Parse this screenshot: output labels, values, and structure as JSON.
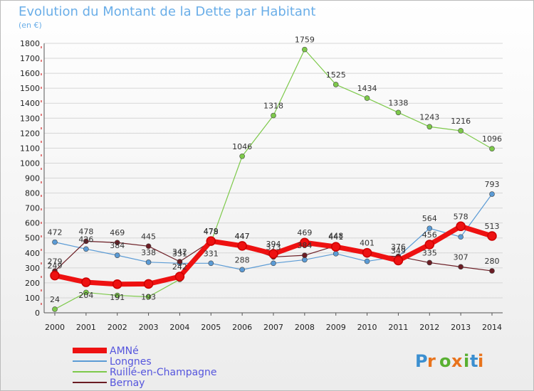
{
  "chart_data": {
    "type": "line",
    "title": "Evolution du Montant de la Dette par Habitant",
    "subtitle": "(en €)",
    "x": [
      "2000",
      "2001",
      "2002",
      "2003",
      "2004",
      "2005",
      "2006",
      "2007",
      "2008",
      "2009",
      "2010",
      "2011",
      "2012",
      "2013",
      "2014"
    ],
    "ylim": [
      0,
      1800
    ],
    "yticks": [
      0,
      100,
      200,
      300,
      400,
      500,
      600,
      700,
      800,
      900,
      1000,
      1100,
      1200,
      1300,
      1400,
      1500,
      1600,
      1700,
      1800
    ],
    "grid": true,
    "legend_position": "bottom-left",
    "series": [
      {
        "name": "Ruillé-en-Champagne",
        "color": "#7dc94a",
        "values": [
          24,
          136,
          116,
          107,
          223,
          470,
          1046,
          1318,
          1759,
          1525,
          1434,
          1338,
          1243,
          1216,
          1096
        ],
        "labels": [
          "24",
          "",
          "",
          "",
          "",
          "",
          "1046",
          "1318",
          "1759",
          "1525",
          "1434",
          "1338",
          "1243",
          "1216",
          "1096"
        ]
      },
      {
        "name": "Longnes",
        "color": "#5b9bd5",
        "values": [
          472,
          426,
          384,
          338,
          331,
          331,
          288,
          331,
          354,
          395,
          344,
          376,
          564,
          507,
          793
        ],
        "labels": [
          "472",
          "426",
          "384",
          "338",
          "331",
          "331",
          "288",
          "",
          "",
          "",
          "",
          "376",
          "564",
          "",
          "793"
        ]
      },
      {
        "name": "Bernay",
        "color": "#6b1d24",
        "values": [
          279,
          478,
          469,
          445,
          342,
          478,
          447,
          373,
          384,
          448,
          386,
          376,
          335,
          307,
          280
        ],
        "labels": [
          "279",
          "478",
          "469",
          "445",
          "342",
          "478",
          "447",
          "373",
          "384",
          "448",
          "",
          "",
          "335",
          "307",
          "280"
        ]
      },
      {
        "name": "AMNé",
        "color": "#ee1111",
        "values": [
          249,
          204,
          191,
          193,
          242,
          479,
          447,
          394,
          469,
          441,
          401,
          349,
          456,
          578,
          513
        ],
        "labels": [
          "249",
          "204",
          "191",
          "193",
          "242",
          "479",
          "447",
          "394",
          "469",
          "441",
          "401",
          "349",
          "456",
          "578",
          "513"
        ]
      }
    ]
  },
  "legend": [
    "AMNé",
    "Longnes",
    "Ruillé-en-Champagne",
    "Bernay"
  ],
  "logo": {
    "text": "Proxiti",
    "colors": [
      "#3b8fd0",
      "#e8731c",
      "#58b031",
      "#e8731c",
      "#58b031",
      "#3b8fd0",
      "#e8731c"
    ]
  }
}
